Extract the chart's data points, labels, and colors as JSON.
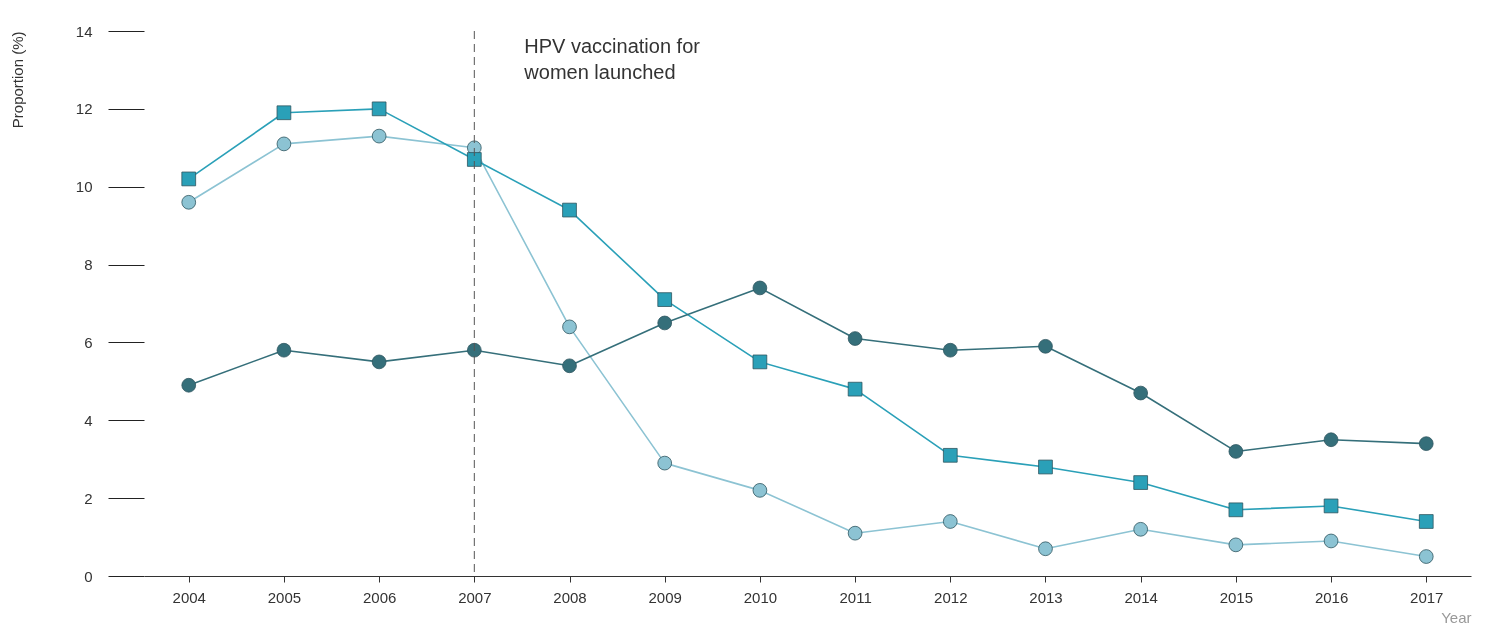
{
  "chart_data": {
    "type": "line",
    "xlabel": "Year",
    "ylabel": "Proportion (%)",
    "categories": [
      "2004",
      "2005",
      "2006",
      "2007",
      "2008",
      "2009",
      "2010",
      "2011",
      "2012",
      "2013",
      "2014",
      "2015",
      "2016",
      "2017"
    ],
    "ylim": [
      0,
      14
    ],
    "yticks": [
      0,
      2,
      4,
      6,
      8,
      10,
      12,
      14
    ],
    "grid": false,
    "series": [
      {
        "color": "#8cc3d3",
        "marker": "circle",
        "values": [
          9.6,
          11.1,
          11.3,
          11.0,
          6.4,
          2.9,
          2.2,
          1.1,
          1.4,
          0.7,
          1.2,
          0.8,
          0.9,
          0.5
        ]
      },
      {
        "color": "#2aa0b8",
        "marker": "square",
        "values": [
          10.2,
          11.9,
          12.0,
          10.7,
          9.4,
          7.1,
          5.5,
          4.8,
          3.1,
          2.8,
          2.4,
          1.7,
          1.8,
          1.4
        ]
      },
      {
        "color": "#356f7a",
        "marker": "circle",
        "values": [
          4.9,
          5.8,
          5.5,
          5.8,
          5.4,
          6.5,
          7.4,
          6.1,
          5.8,
          5.9,
          4.7,
          3.2,
          3.5,
          3.4
        ]
      }
    ],
    "ref_lines": [
      {
        "axis": "x",
        "value": "2007",
        "label": "HPV vaccination for\nwomen launched",
        "line_style": "dashed",
        "color": "#555555"
      }
    ]
  }
}
